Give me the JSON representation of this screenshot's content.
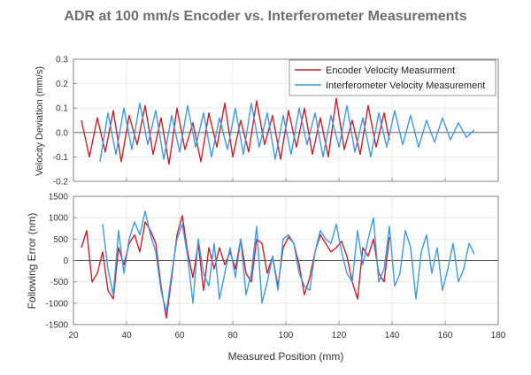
{
  "chart_data": [
    {
      "type": "line",
      "title": "ADR at 100 mm/s Encoder vs. Interferometer Measurements",
      "ylabel": "Velocity Deviation (mm/s)",
      "xlim": [
        20,
        180
      ],
      "ylim": [
        -0.2,
        0.3
      ],
      "yticks": [
        -0.2,
        -0.1,
        0,
        0.1,
        0.2,
        0.3
      ],
      "ytick_labels": [
        "-0.2",
        "-0.1",
        "0.0",
        "0.1",
        "0.2",
        "0.3"
      ],
      "grid": true,
      "legend": "top-right",
      "series": [
        {
          "name": "Encoder Velocity Measurment",
          "color": "#c8202a",
          "x": [
            23,
            26,
            29,
            32,
            35,
            38,
            41,
            44,
            47,
            50,
            53,
            56,
            59,
            62,
            65,
            68,
            71,
            74,
            77,
            80,
            83,
            86,
            89,
            92,
            95,
            98,
            101,
            104,
            107,
            110,
            113,
            116,
            119,
            122,
            125,
            128,
            131,
            134,
            137,
            139
          ],
          "y": [
            0.05,
            -0.1,
            0.06,
            -0.08,
            0.09,
            -0.12,
            0.07,
            -0.05,
            0.11,
            -0.09,
            0.06,
            -0.13,
            0.1,
            -0.07,
            0.04,
            -0.12,
            0.08,
            -0.06,
            0.12,
            -0.1,
            0.05,
            -0.08,
            0.13,
            -0.05,
            0.07,
            -0.11,
            0.09,
            -0.06,
            0.1,
            -0.09,
            0.06,
            -0.1,
            0.14,
            -0.07,
            0.05,
            -0.09,
            0.11,
            -0.06,
            0.08,
            -0.03
          ]
        },
        {
          "name": "Interferometer Velocity Measurement",
          "color": "#3d98e6",
          "x": [
            30,
            33,
            36,
            39,
            42,
            45,
            48,
            51,
            54,
            57,
            60,
            63,
            66,
            69,
            72,
            75,
            78,
            81,
            84,
            87,
            90,
            93,
            96,
            99,
            102,
            105,
            108,
            111,
            114,
            117,
            120,
            123,
            126,
            129,
            132,
            135,
            138,
            141,
            144,
            147,
            150,
            153,
            156,
            159,
            162,
            165,
            168,
            171
          ],
          "y": [
            -0.12,
            0.08,
            -0.09,
            0.1,
            -0.07,
            0.12,
            -0.05,
            0.09,
            -0.11,
            0.07,
            -0.08,
            0.11,
            -0.06,
            0.08,
            -0.1,
            0.06,
            -0.07,
            0.1,
            -0.09,
            0.12,
            -0.06,
            0.08,
            -0.11,
            0.07,
            -0.09,
            0.1,
            -0.05,
            0.08,
            -0.1,
            0.07,
            -0.06,
            0.11,
            -0.08,
            0.06,
            -0.1,
            0.08,
            -0.06,
            0.09,
            -0.05,
            0.07,
            -0.06,
            0.05,
            -0.04,
            0.06,
            -0.03,
            0.04,
            -0.02,
            0.01
          ]
        }
      ]
    },
    {
      "type": "line",
      "ylabel": "Following Error (nm)",
      "xlabel": "Measured Position (mm)",
      "xlim": [
        20,
        180
      ],
      "ylim": [
        -1500,
        1500
      ],
      "xticks": [
        20,
        40,
        60,
        80,
        100,
        120,
        140,
        160,
        180
      ],
      "xtick_labels": [
        "20",
        "40",
        "60",
        "80",
        "100",
        "120",
        "140",
        "160",
        "180"
      ],
      "yticks": [
        -1500,
        -1000,
        -500,
        0,
        500,
        1000,
        1500
      ],
      "ytick_labels": [
        "-1500",
        "-1000",
        "-500",
        "0",
        "500",
        "1000",
        "1500"
      ],
      "grid": true,
      "series": [
        {
          "name": "Encoder Velocity Measurment",
          "color": "#c8202a",
          "x": [
            23,
            25,
            27,
            29,
            31,
            33,
            35,
            37,
            39,
            41,
            43,
            45,
            47,
            49,
            51,
            53,
            55,
            57,
            59,
            61,
            63,
            65,
            67,
            69,
            71,
            73,
            75,
            77,
            79,
            81,
            83,
            85,
            87,
            89,
            91,
            93,
            95,
            97,
            99,
            101,
            103,
            105,
            107,
            109,
            111,
            113,
            115,
            117,
            119,
            121,
            123,
            125,
            127,
            129,
            131,
            133,
            135,
            137,
            139
          ],
          "y": [
            300,
            700,
            -500,
            -300,
            200,
            -700,
            -900,
            300,
            -100,
            400,
            600,
            200,
            900,
            700,
            400,
            -600,
            -1350,
            -400,
            600,
            1050,
            200,
            -400,
            400,
            -700,
            300,
            -200,
            300,
            -100,
            200,
            -200,
            500,
            -300,
            -500,
            500,
            400,
            -300,
            100,
            -600,
            300,
            550,
            400,
            -100,
            -800,
            -400,
            200,
            600,
            400,
            200,
            300,
            450,
            100,
            -500,
            -900,
            300,
            100,
            500,
            -300,
            -500,
            550
          ]
        },
        {
          "name": "Interferometer Velocity Measurement",
          "color": "#3d98e6",
          "x": [
            31,
            33,
            35,
            37,
            39,
            41,
            43,
            45,
            47,
            49,
            51,
            53,
            55,
            57,
            59,
            61,
            63,
            65,
            67,
            69,
            71,
            73,
            75,
            77,
            79,
            81,
            83,
            85,
            87,
            89,
            91,
            93,
            95,
            97,
            99,
            101,
            103,
            105,
            107,
            109,
            111,
            113,
            115,
            117,
            119,
            121,
            123,
            125,
            127,
            129,
            131,
            133,
            135,
            137,
            139,
            141,
            143,
            145,
            147,
            149,
            151,
            153,
            155,
            157,
            159,
            161,
            163,
            165,
            167,
            169,
            171
          ],
          "y": [
            850,
            -200,
            -800,
            700,
            -300,
            500,
            900,
            600,
            1150,
            600,
            200,
            -700,
            -1200,
            -300,
            500,
            850,
            100,
            -1000,
            500,
            -300,
            -600,
            400,
            -900,
            -300,
            300,
            -400,
            500,
            -800,
            -300,
            800,
            -1000,
            -500,
            100,
            -700,
            500,
            600,
            400,
            -300,
            -600,
            -700,
            200,
            700,
            500,
            400,
            850,
            200,
            -300,
            -500,
            700,
            -100,
            500,
            1000,
            -500,
            -200,
            800,
            -600,
            -300,
            700,
            300,
            -900,
            200,
            600,
            -300,
            300,
            -700,
            -200,
            400,
            -500,
            -200,
            400,
            150
          ]
        }
      ]
    }
  ]
}
